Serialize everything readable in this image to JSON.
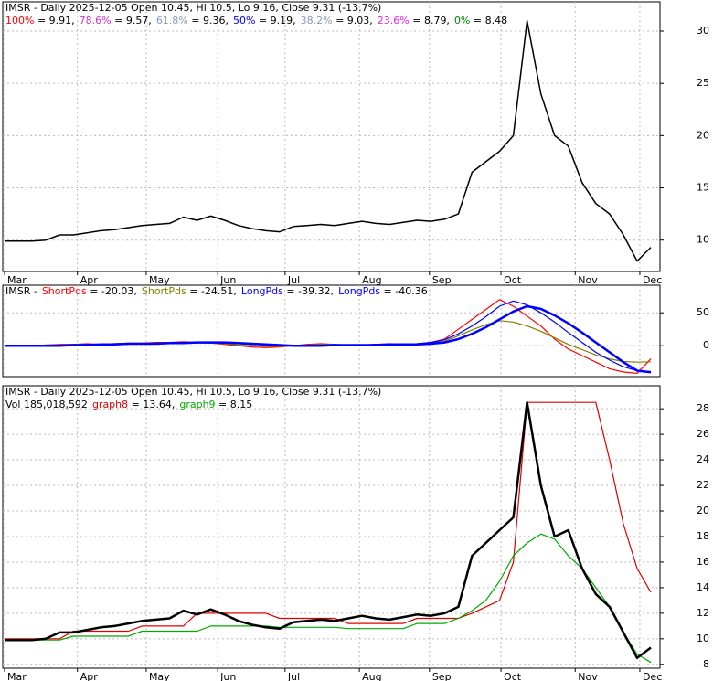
{
  "chart_data": [
    {
      "type": "line",
      "title": "IMSR - Daily 2025-12-05 Open 10.45, Hi 10.5, Lo 9.16, Close 9.31 (-13.7%)",
      "levels": [
        {
          "name": "100%",
          "label": " = 9.91,",
          "color": "#ff0000"
        },
        {
          "name": "78.6%",
          "label": " = 9.57,",
          "color": "#cc33cc"
        },
        {
          "name": "61.8%",
          "label": " = 9.36,",
          "color": "#8899bb"
        },
        {
          "name": "50%",
          "label": " = 9.19,",
          "color": "#0000ff"
        },
        {
          "name": "38.2%",
          "label": " = 9.03,",
          "color": "#8899bb"
        },
        {
          "name": "23.6%",
          "label": " = 8.79,",
          "color": "#ee22ee"
        },
        {
          "name": "0%",
          "label": " = 8.48",
          "color": "#008800"
        }
      ],
      "values": [
        9.9,
        9.9,
        9.9,
        10.0,
        10.5,
        10.5,
        10.7,
        10.9,
        11.0,
        11.2,
        11.4,
        11.5,
        11.6,
        12.2,
        11.9,
        12.3,
        11.9,
        11.4,
        11.1,
        10.9,
        10.8,
        11.3,
        11.4,
        11.5,
        11.4,
        11.6,
        11.8,
        11.6,
        11.5,
        11.7,
        11.9,
        11.8,
        12.0,
        12.5,
        16.5,
        17.5,
        18.5,
        20,
        31,
        24,
        20,
        19,
        15.5,
        13.5,
        12.5,
        10.5,
        8.0,
        9.31
      ],
      "color": "#000000",
      "ylim": [
        7.0,
        32.8
      ],
      "yticks": [
        10,
        15,
        20,
        25,
        30
      ],
      "xticks": [
        {
          "value": 0,
          "label": "Mar"
        },
        {
          "value": 5.3,
          "label": "Apr"
        },
        {
          "value": 10.3,
          "label": "May"
        },
        {
          "value": 15.5,
          "label": "Jun"
        },
        {
          "value": 20.4,
          "label": "Jul"
        },
        {
          "value": 25.8,
          "label": "Aug"
        },
        {
          "value": 30.9,
          "label": "Sep"
        },
        {
          "value": 36.1,
          "label": "Oct"
        },
        {
          "value": 41.5,
          "label": "Nov"
        },
        {
          "value": 46.2,
          "label": "Dec"
        }
      ],
      "grid": true
    },
    {
      "type": "line",
      "title": "IMSR -",
      "series": [
        {
          "name": "ShortPds",
          "value_label": " = -20.03,",
          "color": "#ff0000",
          "values": [
            0,
            -1,
            0,
            1,
            2,
            2,
            3,
            2,
            3,
            4,
            4,
            5,
            5,
            6,
            5,
            4,
            2,
            0,
            -2,
            -3,
            -2,
            0,
            2,
            3,
            2,
            0,
            1,
            2,
            3,
            2,
            3,
            5,
            10,
            25,
            40,
            55,
            70,
            60,
            45,
            30,
            10,
            -5,
            -15,
            -25,
            -35,
            -40,
            -42,
            -20.03
          ]
        },
        {
          "name": "ShortPds",
          "value_label": " = -24.51,",
          "color": "#808000",
          "values": [
            0,
            0,
            0,
            1,
            1,
            2,
            2,
            2,
            3,
            3,
            3,
            4,
            4,
            5,
            5,
            4,
            3,
            1,
            0,
            -1,
            -1,
            0,
            1,
            2,
            2,
            1,
            1,
            2,
            2,
            2,
            3,
            4,
            7,
            15,
            24,
            32,
            38,
            36,
            30,
            22,
            12,
            2,
            -6,
            -14,
            -20,
            -24,
            -25,
            -24.51
          ]
        },
        {
          "name": "LongPds",
          "value_label": " = -39.32,",
          "color": "#0000ff",
          "values": [
            0,
            0,
            0,
            0,
            1,
            1,
            2,
            2,
            3,
            3,
            3,
            4,
            4,
            5,
            5,
            5,
            4,
            3,
            2,
            1,
            0,
            0,
            1,
            1,
            1,
            1,
            1,
            2,
            2,
            2,
            3,
            5,
            9,
            18,
            30,
            44,
            60,
            68,
            62,
            50,
            36,
            20,
            5,
            -10,
            -22,
            -32,
            -38,
            -39.32
          ]
        },
        {
          "name": "LongPds",
          "value_label": " = -40.36",
          "color": "#0000ff",
          "values": [
            0,
            0,
            0,
            0,
            0,
            1,
            1,
            2,
            2,
            3,
            3,
            3,
            4,
            4,
            5,
            5,
            5,
            4,
            3,
            2,
            1,
            0,
            0,
            0,
            1,
            1,
            1,
            1,
            2,
            2,
            2,
            3,
            5,
            10,
            18,
            28,
            40,
            52,
            60,
            56,
            46,
            34,
            20,
            5,
            -10,
            -25,
            -38,
            -40.36
          ]
        }
      ],
      "ylim": [
        -47,
        92
      ],
      "yticks": [
        0,
        50
      ],
      "grid": true
    },
    {
      "type": "line",
      "title": "IMSR - Daily 2025-12-05 Open 10.45, Hi 10.5, Lo 9.16, Close 9.31 (-13.7%)",
      "subtitle": "Vol 185,018,592",
      "values": [
        9.9,
        9.9,
        9.9,
        10.0,
        10.5,
        10.5,
        10.7,
        10.9,
        11.0,
        11.2,
        11.4,
        11.5,
        11.6,
        12.2,
        11.9,
        12.3,
        11.9,
        11.4,
        11.1,
        10.9,
        10.8,
        11.3,
        11.4,
        11.5,
        11.4,
        11.6,
        11.8,
        11.6,
        11.5,
        11.7,
        11.9,
        11.8,
        12.0,
        12.5,
        16.5,
        17.5,
        18.5,
        19.5,
        28.5,
        22,
        18,
        18.5,
        15.5,
        13.5,
        12.5,
        10.5,
        8.5,
        9.31
      ],
      "color": "#000000",
      "series": [
        {
          "name": "graph8",
          "value_label": " = 13.64,",
          "color": "#dd0000",
          "values": [
            10,
            10,
            10,
            10,
            10,
            10.6,
            10.6,
            10.6,
            10.6,
            10.6,
            11.0,
            11.0,
            11.0,
            11.0,
            12.0,
            12.0,
            12.0,
            12.0,
            12.0,
            12.0,
            11.6,
            11.6,
            11.6,
            11.6,
            11.6,
            11.2,
            11.2,
            11.2,
            11.2,
            11.2,
            11.6,
            11.6,
            11.6,
            11.6,
            12,
            12.5,
            13,
            16,
            28.5,
            28.5,
            28.5,
            28.5,
            28.5,
            28.5,
            24,
            19,
            15.5,
            13.64
          ]
        },
        {
          "name": "graph9",
          "value_label": " = 8.15",
          "color": "#00aa00",
          "values": [
            9.9,
            9.9,
            9.9,
            9.9,
            9.9,
            10.2,
            10.2,
            10.2,
            10.2,
            10.2,
            10.6,
            10.6,
            10.6,
            10.6,
            10.6,
            11.0,
            11.0,
            11.0,
            11.0,
            11.0,
            10.9,
            10.9,
            10.9,
            10.9,
            10.9,
            10.8,
            10.8,
            10.8,
            10.8,
            10.8,
            11.2,
            11.2,
            11.2,
            11.6,
            12.2,
            13,
            14.5,
            16.5,
            17.5,
            18.2,
            17.8,
            16.5,
            15.5,
            14,
            12.5,
            10.5,
            8.8,
            8.15
          ]
        }
      ],
      "ylim": [
        7.7,
        29.8
      ],
      "yticks": [
        8,
        10,
        12,
        14,
        16,
        18,
        20,
        22,
        24,
        26,
        28
      ],
      "xticks": [
        {
          "value": 0,
          "label": "Mar"
        },
        {
          "value": 5.3,
          "label": "Apr"
        },
        {
          "value": 10.3,
          "label": "May"
        },
        {
          "value": 15.5,
          "label": "Jun"
        },
        {
          "value": 20.4,
          "label": "Jul"
        },
        {
          "value": 25.8,
          "label": "Aug"
        },
        {
          "value": 30.9,
          "label": "Sep"
        },
        {
          "value": 36.1,
          "label": "Oct"
        },
        {
          "value": 41.5,
          "label": "Nov"
        },
        {
          "value": 46.2,
          "label": "Dec"
        }
      ],
      "grid": true
    }
  ]
}
